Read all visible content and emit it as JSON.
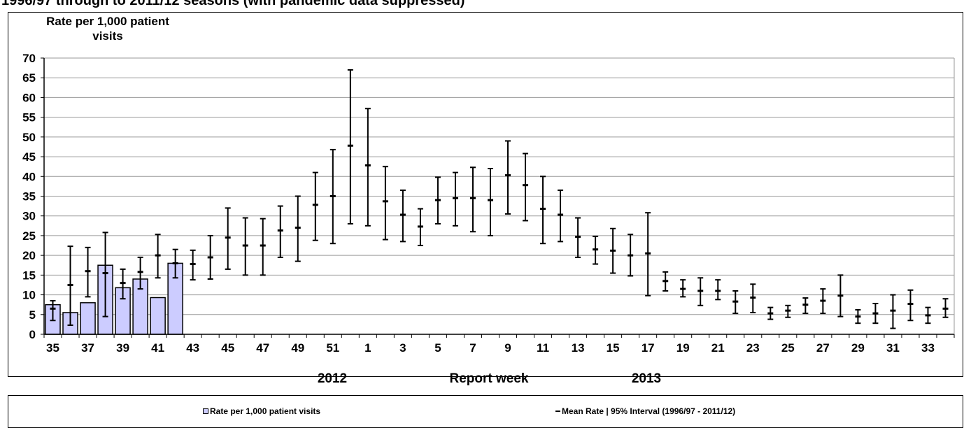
{
  "title": "1996/97 through to 2011/12 seasons (with pandemic data suppressed)",
  "chart_data": {
    "type": "bar",
    "ylabel_line1": "Rate per 1,000  patient",
    "ylabel_line2": "visits",
    "xlabel": "Report week",
    "year_labels": [
      "2012",
      "2013"
    ],
    "ylim": [
      0,
      70
    ],
    "yticks": [
      0,
      5,
      10,
      15,
      20,
      25,
      30,
      35,
      40,
      45,
      50,
      55,
      60,
      65,
      70
    ],
    "grid": true,
    "weeks": [
      35,
      36,
      37,
      38,
      39,
      40,
      41,
      42,
      43,
      44,
      45,
      46,
      47,
      48,
      49,
      50,
      51,
      52,
      1,
      2,
      3,
      4,
      5,
      6,
      7,
      8,
      9,
      10,
      11,
      12,
      13,
      14,
      15,
      16,
      17,
      18,
      19,
      20,
      21,
      22,
      23,
      24,
      25,
      26,
      27,
      28,
      29,
      30,
      31,
      32,
      33,
      34
    ],
    "xtick_labels": [
      "35",
      "37",
      "39",
      "41",
      "43",
      "45",
      "47",
      "49",
      "51",
      "1",
      "3",
      "5",
      "7",
      "9",
      "11",
      "13",
      "15",
      "17",
      "19",
      "21",
      "23",
      "25",
      "27",
      "29",
      "31",
      "33"
    ],
    "series": [
      {
        "name": "Rate per 1,000 patient visits",
        "kind": "bar",
        "color": "#ccccff",
        "values": [
          7.5,
          5.5,
          8.0,
          17.5,
          11.8,
          14.0,
          9.3,
          18.0
        ]
      },
      {
        "name": "Mean Rate | 95% Interval (1996/97 - 2011/12)",
        "kind": "errorbar",
        "color": "#000000",
        "mean": [
          6.5,
          12.5,
          16,
          15.5,
          13,
          15.8,
          20,
          18,
          17.8,
          19.5,
          24.5,
          22.5,
          22.5,
          26.3,
          27,
          32.8,
          35,
          47.8,
          42.8,
          33.7,
          30.3,
          27.3,
          34,
          34.5,
          34.5,
          34,
          40.3,
          37.8,
          31.8,
          30.3,
          24.7,
          21.5,
          21.2,
          20,
          20.5,
          13.5,
          11.5,
          11,
          11,
          8.3,
          9.3,
          5.3,
          6,
          7.5,
          8.5,
          9.8,
          4.5,
          5.3,
          6,
          7.7,
          4.8,
          6.5
        ],
        "lower": [
          3.5,
          2.3,
          9.5,
          4.5,
          9,
          11.5,
          14.3,
          14.3,
          13.8,
          14,
          16.5,
          15,
          15,
          19.5,
          18.5,
          23.8,
          23,
          28,
          27.5,
          24,
          23.5,
          22.5,
          28,
          27.5,
          26,
          25,
          30.5,
          28.8,
          23,
          23.5,
          19.5,
          17.8,
          15.5,
          14.8,
          9.8,
          11,
          9.5,
          7.3,
          8.8,
          5.3,
          5.5,
          3.8,
          4.3,
          5.3,
          5.3,
          4.5,
          2.8,
          2.8,
          1.5,
          3.5,
          2.8,
          4.3
        ],
        "upper": [
          8.5,
          22.3,
          22,
          25.8,
          16.5,
          19.5,
          25.3,
          21.5,
          21.3,
          25,
          32,
          29.5,
          29.3,
          32.5,
          35,
          41,
          46.8,
          67,
          57.2,
          42.5,
          36.5,
          31.8,
          39.8,
          41,
          42.3,
          42,
          49,
          45.8,
          40,
          36.5,
          29.5,
          24.8,
          26.8,
          25.3,
          30.8,
          15.8,
          13.8,
          14.3,
          13.8,
          11,
          12.7,
          6.8,
          7.3,
          9.2,
          11.5,
          15,
          6.2,
          7.8,
          10,
          11.2,
          6.8,
          9
        ]
      }
    ]
  },
  "legend": {
    "bar_label": "Rate per 1,000 patient visits",
    "line_label": "Mean Rate | 95% Interval (1996/97 - 2011/12)"
  }
}
